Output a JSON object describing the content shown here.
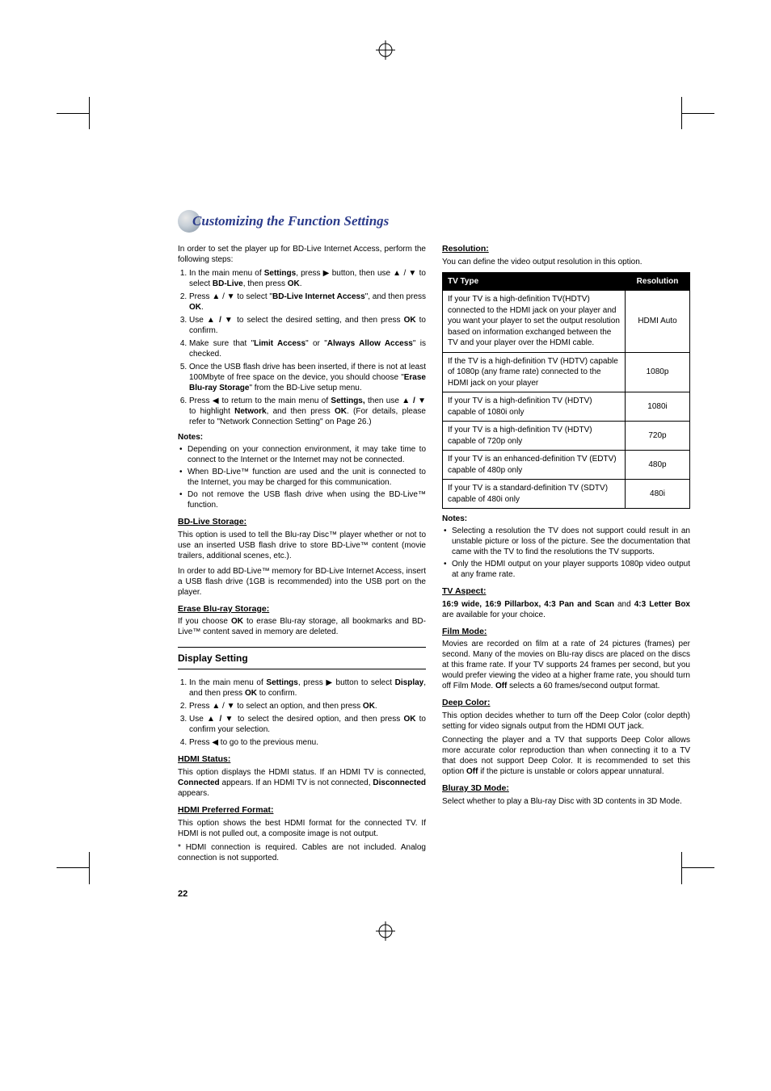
{
  "page_number": "22",
  "title": "Customizing the Function Settings",
  "colors": {
    "title_color": "#2a3a8a",
    "text_color": "#000000",
    "table_header_bg": "#000000",
    "table_header_fg": "#ffffff",
    "background": "#ffffff"
  },
  "left": {
    "intro": "In order to set the player up for BD-Live Internet Access, perform the following steps:",
    "steps": [
      "In the main menu of <b>Settings</b>, press ▶ button, then use ▲ / ▼ to select <b>BD-Live</b>, then press <b>OK</b>.",
      "Press ▲ / ▼ to select \"<b>BD-Live Internet Access</b>\", and then press <b>OK</b>.",
      "Use ▲ <b>/</b> ▼ to select the desired setting, and then press <b>OK</b> to confirm.",
      "Make sure that \"<b>Limit Access</b>\" or \"<b>Always Allow Access</b>\" is checked.",
      "Once the USB flash drive has been inserted, if there is not at least 100Mbyte of free space on the device, you should choose \"<b>Erase Blu-ray Storage</b>\" from the BD-Live setup menu.",
      "Press ◀ to return to the main menu of <b>Settings,</b> then use ▲ <b>/</b> ▼ to highlight <b>Network</b>, and then press <b>OK</b>. (For details, please refer to \"Network Connection Setting\" on Page 26.)"
    ],
    "notes_label": "Notes:",
    "notes": [
      "Depending on your connection environment, it may take time to connect to the Internet or the Internet may not be connected.",
      "When BD-Live™ function are used and the unit is connected to the Internet, you may be charged for this communication.",
      "Do not remove the USB flash drive when using the BD-Live™ function."
    ],
    "bdlive_head": "BD-Live Storage:",
    "bdlive_p1": "This option is used to tell the Blu-ray Disc™ player whether or not to use an inserted USB flash drive to store BD-Live™ content (movie trailers, additional scenes, etc.).",
    "bdlive_p2": "In order to add BD-Live™ memory for BD-Live Internet Access, insert a USB flash drive (1GB is recommended) into the USB port on the player.",
    "erase_head": "Erase Blu-ray Storage:",
    "erase_p": "If you choose <b>OK</b> to erase Blu-ray storage, all bookmarks and BD-Live™ content saved in memory are deleted.",
    "display_section": "Display Setting",
    "display_steps": [
      "In the main menu of <b>Settings</b>, press ▶ button to select <b>Display</b>, and then press <b>OK</b> to confirm.",
      "Press ▲ / ▼ to select an option, and then press <b>OK</b>.",
      "Use ▲ <b>/</b> ▼ to select the desired option, and then press <b>OK</b> to confirm your selection.",
      "Press ◀ to go to the previous menu."
    ],
    "hdmi_status_head": "HDMI Status:",
    "hdmi_status_p": "This option displays the HDMI status. If an HDMI TV is connected, <b>Connected</b> appears. If an HDMI TV is not connected, <b>Disconnected</b> appears.",
    "hdmi_pref_head": "HDMI Preferred Format:",
    "hdmi_pref_p1": "This option shows the best HDMI format for the connected TV. If HDMI is not pulled out, a composite image is not output.",
    "hdmi_pref_p2": "* HDMI connection is required. Cables are not included. Analog connection is not supported."
  },
  "right": {
    "res_head": "Resolution:",
    "res_intro": "You can define the video output resolution in this option.",
    "table": {
      "headers": [
        "TV Type",
        "Resolution"
      ],
      "rows": [
        [
          "If your TV is a high-definition TV(HDTV) connected to the HDMI jack on your player and you want your player to set the output resolution based on information exchanged between the TV and your player over the HDMI cable.",
          "HDMI Auto"
        ],
        [
          "If the TV is a high-definition TV (HDTV) capable of 1080p (any frame rate) connected to the HDMI jack on your player",
          "1080p"
        ],
        [
          "If your TV is a high-definition TV (HDTV) capable of 1080i only",
          "1080i"
        ],
        [
          "If your TV is a high-definition TV (HDTV) capable of 720p only",
          "720p"
        ],
        [
          "If your TV is an enhanced-definition TV (EDTV) capable of 480p only",
          "480p"
        ],
        [
          "If your TV is a standard-definition TV (SDTV) capable of 480i only",
          "480i"
        ]
      ]
    },
    "notes_label": "Notes:",
    "notes": [
      "Selecting a resolution the TV does not support could result in an unstable picture or loss of the picture. See the documentation that came with the TV to find the resolutions the TV supports.",
      "Only the HDMI output on your player supports 1080p video output at any frame rate."
    ],
    "tvaspect_head": "TV Aspect:",
    "tvaspect_p": "<b>16:9 wide, 16:9 Pillarbox, 4:3 Pan and Scan</b> and <b>4:3 Letter Box</b> are available for your choice.",
    "film_head": "Film Mode:",
    "film_p": "Movies are recorded on film at a rate of 24 pictures (frames) per second. Many of the movies on Blu-ray discs are placed on the discs at this frame rate. If your TV supports 24 frames per second, but you would prefer viewing the video at a higher frame rate, you should turn off Film Mode. <b>Off</b> selects a 60 frames/second output format.",
    "deep_head": "Deep Color:",
    "deep_p1": "This option decides whether to turn off the Deep Color (color depth) setting for video signals output from the HDMI OUT jack.",
    "deep_p2": "Connecting the player and a TV that supports Deep Color allows more accurate color reproduction than when connecting it to a TV that does not support Deep Color. It is recommended to set this option <b>Off</b> if the picture is unstable or colors appear unnatural.",
    "bluray3d_head": "Bluray 3D Mode:",
    "bluray3d_p": "Select whether to play a Blu-ray Disc with 3D contents in 3D Mode."
  }
}
